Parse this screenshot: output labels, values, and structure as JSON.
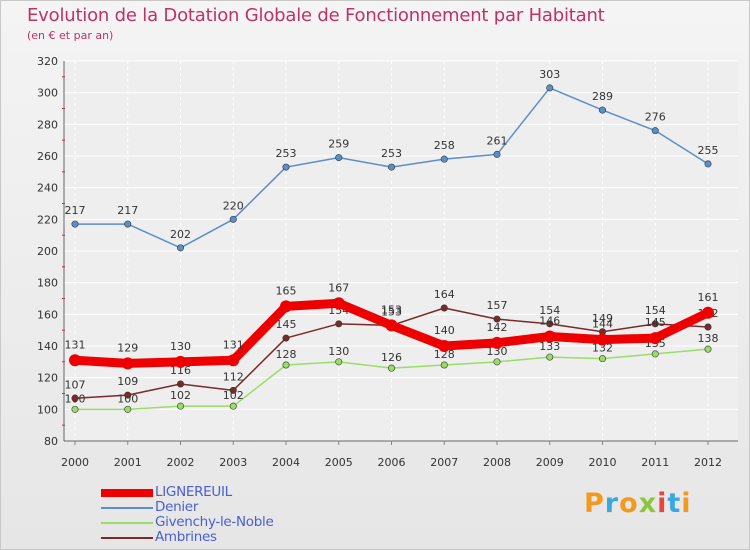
{
  "title": "Evolution de la Dotation Globale de Fonctionnement par Habitant",
  "subtitle": "(en € et par an)",
  "brand": {
    "text": "Proxiti",
    "letters": [
      {
        "ch": "P",
        "color": "#f39a1e"
      },
      {
        "ch": "r",
        "color": "#3aa8df"
      },
      {
        "ch": "o",
        "color": "#f39a1e"
      },
      {
        "ch": "x",
        "color": "#8cc63f"
      },
      {
        "ch": "i",
        "color": "#e5453a"
      },
      {
        "ch": "t",
        "color": "#3aa8df"
      },
      {
        "ch": "i",
        "color": "#f39a1e"
      }
    ]
  },
  "chart_data": {
    "type": "line",
    "title": "Evolution de la Dotation Globale de Fonctionnement par Habitant",
    "subtitle": "(en € et par an)",
    "xlabel": "",
    "ylabel": "",
    "x": [
      "2000",
      "2001",
      "2002",
      "2003",
      "2004",
      "2005",
      "2006",
      "2007",
      "2008",
      "2009",
      "2010",
      "2011",
      "2012"
    ],
    "ylim": [
      80,
      320
    ],
    "yticks": [
      80,
      100,
      120,
      140,
      160,
      180,
      200,
      220,
      240,
      260,
      280,
      300,
      320
    ],
    "grid": true,
    "legend": "bottom-left",
    "series": [
      {
        "name": "LIGNEREUIL",
        "color": "#ee0000",
        "emphasis": true,
        "values": [
          131,
          129,
          130,
          131,
          165,
          167,
          153,
          140,
          142,
          146,
          144,
          145,
          161
        ],
        "labels": [
          "131",
          "129",
          "130",
          "131",
          "165",
          "167",
          "153",
          "140",
          "142",
          "146",
          "144",
          "145",
          "161"
        ]
      },
      {
        "name": "Denier",
        "color": "#5b8fc7",
        "emphasis": false,
        "values": [
          217,
          217,
          202,
          220,
          253,
          259,
          253,
          258,
          261,
          303,
          289,
          276,
          255
        ],
        "labels": [
          "217",
          "217",
          "202",
          "220",
          "253",
          "259",
          "253",
          "258",
          "261",
          "303",
          "289",
          "276",
          "255"
        ]
      },
      {
        "name": "Givenchy-le-Noble",
        "color": "#99dd66",
        "emphasis": false,
        "values": [
          100,
          100,
          102,
          102,
          128,
          130,
          126,
          128,
          130,
          133,
          132,
          135,
          138
        ],
        "labels": [
          "100",
          "100",
          "102",
          "102",
          "128",
          "130",
          "126",
          "128",
          "130",
          "133",
          "132",
          "135",
          "138"
        ]
      },
      {
        "name": "Ambrines",
        "color": "#7a2a2a",
        "emphasis": false,
        "values": [
          107,
          109,
          116,
          112,
          145,
          154,
          153,
          164,
          157,
          154,
          149,
          154,
          152
        ],
        "labels": [
          "107",
          "109",
          "116",
          "112",
          "145",
          "154",
          "153",
          "164",
          "157",
          "154",
          "149",
          "154",
          "152"
        ]
      }
    ]
  }
}
